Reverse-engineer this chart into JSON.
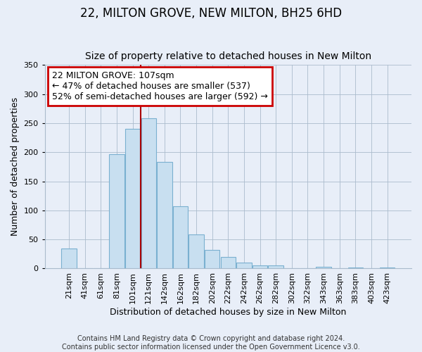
{
  "title": "22, MILTON GROVE, NEW MILTON, BH25 6HD",
  "subtitle": "Size of property relative to detached houses in New Milton",
  "xlabel": "Distribution of detached houses by size in New Milton",
  "ylabel": "Number of detached properties",
  "categories": [
    "21sqm",
    "41sqm",
    "61sqm",
    "81sqm",
    "101sqm",
    "121sqm",
    "142sqm",
    "162sqm",
    "182sqm",
    "202sqm",
    "222sqm",
    "242sqm",
    "262sqm",
    "282sqm",
    "302sqm",
    "322sqm",
    "343sqm",
    "363sqm",
    "383sqm",
    "403sqm",
    "423sqm"
  ],
  "values": [
    35,
    0,
    0,
    197,
    240,
    258,
    183,
    107,
    59,
    32,
    20,
    10,
    5,
    6,
    0,
    0,
    3,
    0,
    2,
    0,
    2
  ],
  "bar_color": "#c8dff0",
  "bar_edge_color": "#7ab0d0",
  "red_line_x": 4.5,
  "highlight_line_color": "#aa0000",
  "annotation_title": "22 MILTON GROVE: 107sqm",
  "annotation_line1": "← 47% of detached houses are smaller (537)",
  "annotation_line2": "52% of semi-detached houses are larger (592) →",
  "annotation_box_color": "#ffffff",
  "annotation_box_edge_color": "#cc0000",
  "ylim": [
    0,
    350
  ],
  "yticks": [
    0,
    50,
    100,
    150,
    200,
    250,
    300,
    350
  ],
  "footer_line1": "Contains HM Land Registry data © Crown copyright and database right 2024.",
  "footer_line2": "Contains public sector information licensed under the Open Government Licence v3.0.",
  "background_color": "#e8eef8",
  "plot_background_color": "#e8eef8",
  "title_fontsize": 12,
  "subtitle_fontsize": 10,
  "axis_label_fontsize": 9,
  "tick_fontsize": 8,
  "annotation_fontsize": 9,
  "footer_fontsize": 7
}
